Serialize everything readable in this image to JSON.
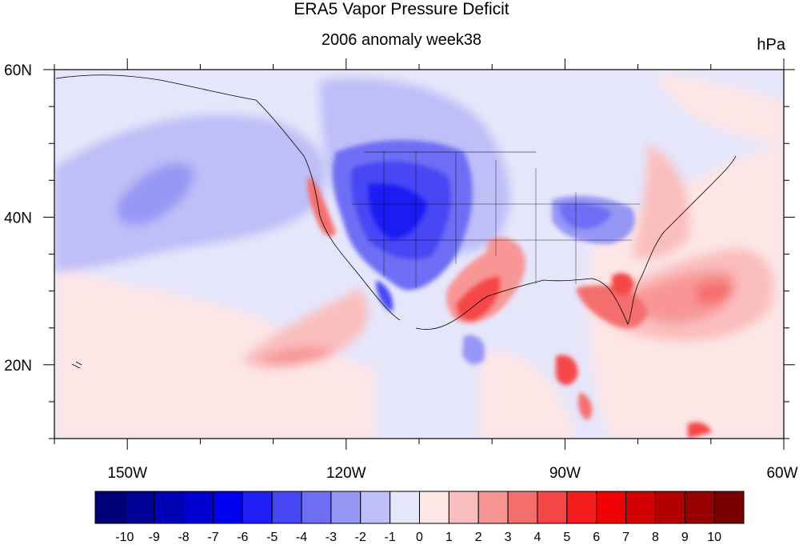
{
  "title": "ERA5 Vapor Pressure Deficit",
  "subtitle": "2006 anomaly week38",
  "units": "hPa",
  "map": {
    "lon_range": [
      -160,
      -60
    ],
    "lat_range": [
      10,
      60
    ],
    "lon_ticks": [
      {
        "value": -150,
        "label": "150W"
      },
      {
        "value": -120,
        "label": "120W"
      },
      {
        "value": -90,
        "label": "90W"
      },
      {
        "value": -60,
        "label": "60W"
      }
    ],
    "lat_ticks": [
      {
        "value": 60,
        "label": "60N"
      },
      {
        "value": 40,
        "label": "40N"
      },
      {
        "value": 20,
        "label": "20N"
      }
    ]
  },
  "colorbar": {
    "labels": [
      "-10",
      "-9",
      "-8",
      "-7",
      "-6",
      "-5",
      "-4",
      "-3",
      "-2",
      "-1",
      "0",
      "1",
      "2",
      "3",
      "4",
      "5",
      "6",
      "7",
      "8",
      "9",
      "10"
    ],
    "colors": [
      "#00007a",
      "#000096",
      "#0000b4",
      "#0000d2",
      "#0000f0",
      "#1e1ef5",
      "#4646f5",
      "#6e6ef5",
      "#9696f5",
      "#bebef8",
      "#e6e6fb",
      "#fde6e6",
      "#fbbebe",
      "#f89696",
      "#f56e6e",
      "#f54646",
      "#f51e1e",
      "#f00000",
      "#d20000",
      "#b40000",
      "#960000",
      "#7a0000"
    ]
  }
}
